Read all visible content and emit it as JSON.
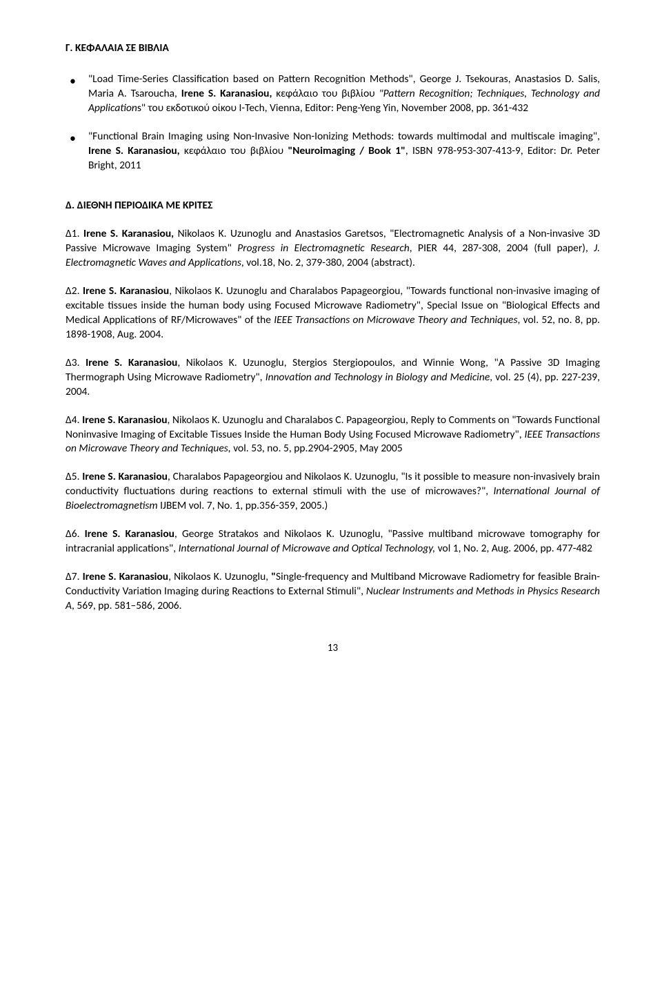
{
  "heading1": "Γ. ΚΕΦΑΛΑΙΑ ΣΕ ΒΙΒΛΙΑ",
  "bullet1_pre": "\"Load Time-Series Classification based on Pattern Recognition Methods\", George J. Tsekouras, Anastasios D. Salis, Maria A. Tsaroucha, ",
  "bullet1_bold": "Irene S. Karanasiou,",
  "bullet1_mid": " κεφάλαιο του βιβλίου ",
  "bullet1_ital1": "\"Pattern Recognition; Techniques, Technology and Application",
  "bullet1_post": "s\" του εκδοτικού οίκου I-Tech, Vienna, Editor: Peng-Yeng Yin, November 2008, pp. 361-432",
  "bullet2_pre": "\"Functional Brain Imaging using Non-Invasive Non-Ionizing Methods: towards multimodal and multiscale imaging\", ",
  "bullet2_bold": "Irene S. Karanasiou,",
  "bullet2_mid": " κεφάλαιο του βιβλίου ",
  "bullet2_bold2": "\"Neuroimaging / Book 1\"",
  "bullet2_post": ", ISBN 978-953-307-413-9, Editor: Dr. Peter Bright, 2011",
  "heading2": "Δ. ΔΙΕΘΝΗ ΠΕΡΙΟΔΙΚΑ ΜΕ ΚΡΙΤΕΣ",
  "d1_num": "Δ1. ",
  "d1_bold": "Irene S. Karanasiou, ",
  "d1_a": "Nikolaos K. Uzunoglu and Anastasios Garetsos, \"Electromagnetic Analysis of a Non-invasive 3D Passive Microwave Imaging System\" ",
  "d1_i1": "Progress in Electromagnetic Research",
  "d1_b": ", PIER 44, 287-308, 2004 (full paper), ",
  "d1_i2": "J. Electromagnetic Waves and Applications",
  "d1_c": ", vol.18, No. 2, 379-380, 2004 (abstract).",
  "d2_num": "Δ2. ",
  "d2_bold": "Irene S. Karanasiou",
  "d2_a": ", Nikolaos K. Uzunoglu and Charalabos Papageorgiou, \"Towards functional non-invasive imaging of excitable tissues inside the human body using Focused Microwave Radiometry\", Special Issue on \"Biological Effects and Medical Applications of RF/Microwaves\" of the ",
  "d2_i1": "IEEE Transactions on Microwave Theory and Techniques",
  "d2_b": ", vol. 52, no. 8, pp. 1898-1908, Aug. 2004.",
  "d3_num": "Δ3. ",
  "d3_bold": "Irene S. Karanasiou",
  "d3_a": ", Nikolaos K. Uzunoglu, Stergios Stergiopoulos, and Winnie Wong, \"A Passive 3D Imaging Thermograph Using Microwave Radiometry\", ",
  "d3_i1": "Innovation and Technology in Biology and Medicine",
  "d3_b": ", vol. 25 (4), pp. 227-239, 2004.",
  "d4_num": "Δ4. ",
  "d4_bold": "Irene S. Karanasiou",
  "d4_a": ", Nikolaos K. Uzunoglu and Charalabos C. Papageorgiou, Reply to Comments on \"Towards Functional Noninvasive Imaging of Excitable Tissues Inside the Human Body Using Focused Microwave Radiometry\", ",
  "d4_i1": "IEEE Transactions on Microwave Theory and Techniques, ",
  "d4_b": "vol. 53, no. 5, pp.2904-2905, May 2005",
  "d5_num": "Δ5. ",
  "d5_bold": "Irene S. Karanasiou",
  "d5_a": ", Charalabos Papageorgiou and Nikolaos K. Uzunoglu, \"Is it possible to measure non-invasively brain conductivity fluctuations during reactions to external stimuli with the use of microwaves?\", ",
  "d5_i1": "International Journal of Bioelectromagnetism",
  "d5_b": " IJBEM vol. 7, No. 1, pp.356-359, 2005.)",
  "d6_num": "Δ6. ",
  "d6_bold": "Irene S. Karanasiou",
  "d6_a": ", George Stratakos and Nikolaos K. Uzunoglu, \"Passive multiband microwave tomography for intracranial applications\", ",
  "d6_i1": "International Journal of Microwave and Optical Technology, ",
  "d6_b": "vol 1, No. 2, Aug. 2006, pp. 477-482",
  "d7_num": "Δ7. ",
  "d7_bold": "Irene S. Karanasiou",
  "d7_a": ", Nikolaos K. Uzunoglu, ",
  "d7_bold2": "\"",
  "d7_b": "Single-frequency and Multiband Microwave Radiometry for feasible Brain-Conductivity Variation Imaging during Reactions to External Stimuli\", ",
  "d7_i1": "Nuclear Instruments and Methods in Physics Research A",
  "d7_c": ", 569, pp. 581–586, 2006.",
  "page_number": "13"
}
